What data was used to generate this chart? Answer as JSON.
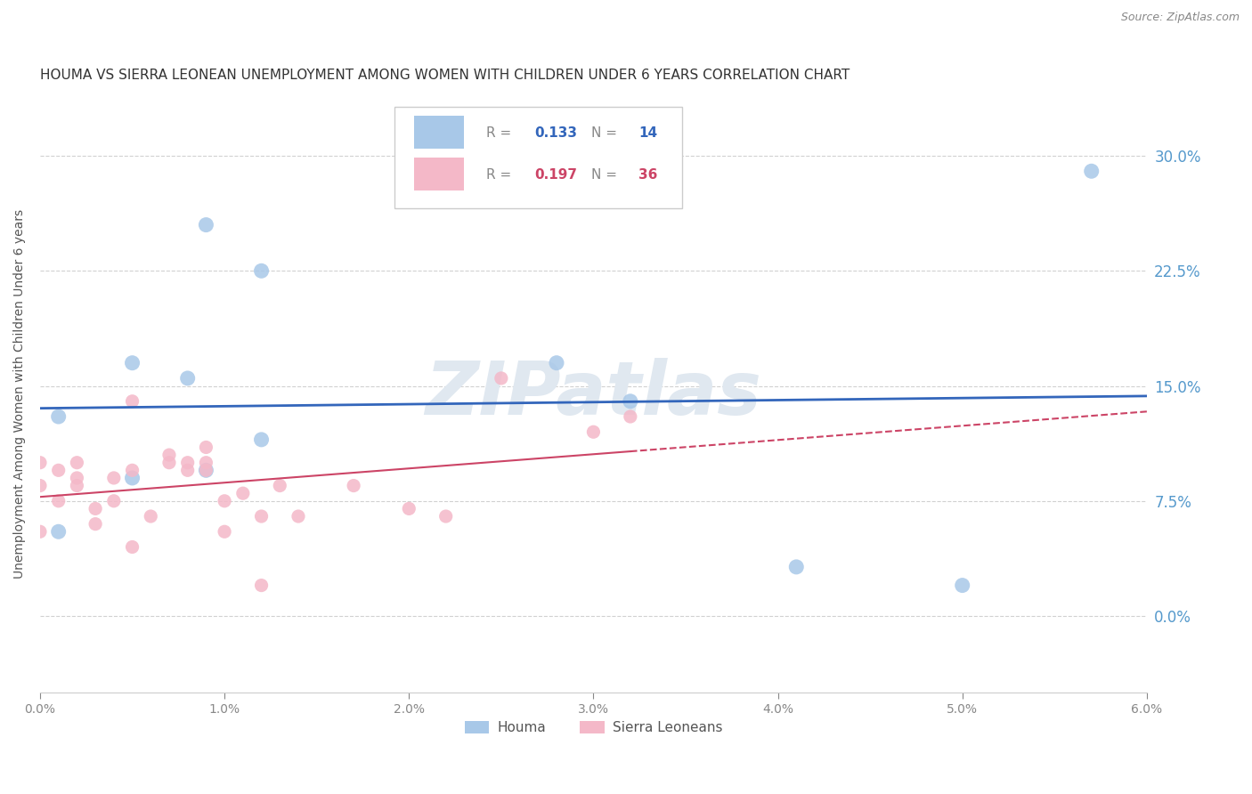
{
  "title": "HOUMA VS SIERRA LEONEAN UNEMPLOYMENT AMONG WOMEN WITH CHILDREN UNDER 6 YEARS CORRELATION CHART",
  "source": "Source: ZipAtlas.com",
  "ylabel": "Unemployment Among Women with Children Under 6 years",
  "xlim": [
    0.0,
    0.06
  ],
  "ylim": [
    -0.05,
    0.34
  ],
  "yticks": [
    0.0,
    0.075,
    0.15,
    0.225,
    0.3
  ],
  "xticks": [
    0.0,
    0.01,
    0.02,
    0.03,
    0.04,
    0.05,
    0.06
  ],
  "houma_x": [
    0.001,
    0.001,
    0.005,
    0.005,
    0.008,
    0.009,
    0.009,
    0.012,
    0.012,
    0.028,
    0.032,
    0.041,
    0.05,
    0.057
  ],
  "houma_y": [
    0.13,
    0.055,
    0.165,
    0.09,
    0.155,
    0.095,
    0.255,
    0.115,
    0.225,
    0.165,
    0.14,
    0.032,
    0.02,
    0.29
  ],
  "sierra_x": [
    0.0,
    0.0,
    0.0,
    0.001,
    0.001,
    0.002,
    0.002,
    0.002,
    0.003,
    0.003,
    0.004,
    0.004,
    0.005,
    0.005,
    0.005,
    0.006,
    0.007,
    0.007,
    0.008,
    0.008,
    0.009,
    0.009,
    0.009,
    0.01,
    0.01,
    0.011,
    0.012,
    0.012,
    0.013,
    0.014,
    0.017,
    0.02,
    0.022,
    0.025,
    0.03,
    0.032
  ],
  "sierra_y": [
    0.055,
    0.085,
    0.1,
    0.075,
    0.095,
    0.1,
    0.085,
    0.09,
    0.06,
    0.07,
    0.075,
    0.09,
    0.095,
    0.14,
    0.045,
    0.065,
    0.1,
    0.105,
    0.095,
    0.1,
    0.11,
    0.095,
    0.1,
    0.055,
    0.075,
    0.08,
    0.065,
    0.02,
    0.085,
    0.065,
    0.085,
    0.07,
    0.065,
    0.155,
    0.12,
    0.13
  ],
  "houma_color": "#a8c8e8",
  "sierra_color": "#f4b8c8",
  "houma_line_color": "#3366bb",
  "sierra_line_color": "#cc4466",
  "houma_R": 0.133,
  "houma_N": 14,
  "sierra_R": 0.197,
  "sierra_N": 36,
  "background_color": "#ffffff",
  "grid_color": "#cccccc",
  "title_fontsize": 11,
  "label_fontsize": 10,
  "tick_fontsize": 10,
  "right_tick_color": "#5599cc",
  "watermark": "ZIPatlas",
  "watermark_color": "#e0e8f0"
}
